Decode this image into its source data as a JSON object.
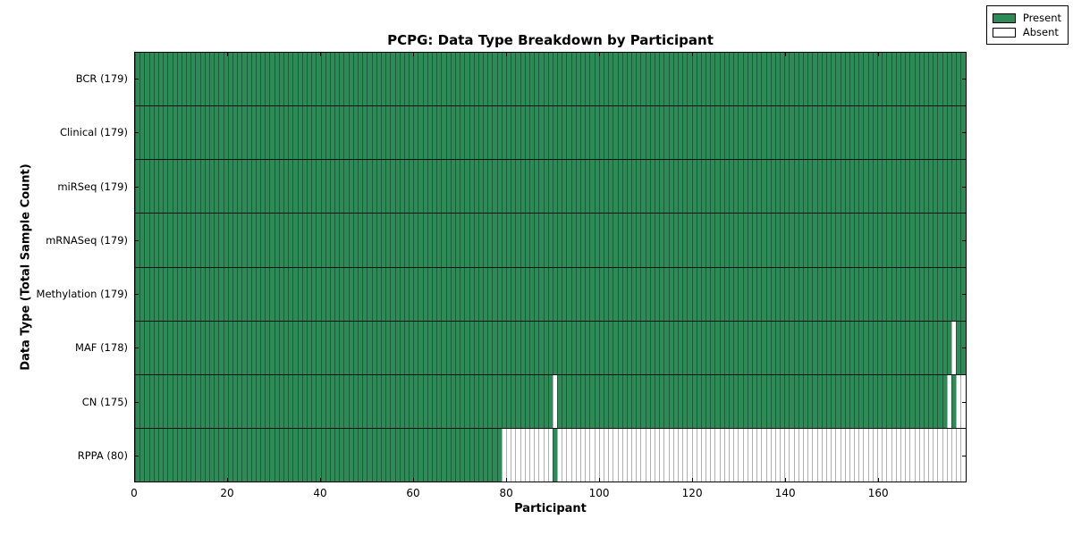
{
  "title": "PCPG: Data Type Breakdown by Participant",
  "xlabel": "Participant",
  "ylabel": "Data Type (Total Sample Count)",
  "colors": {
    "present_fill": "#2e8b57",
    "present_edge": "#1b5c3a",
    "absent_fill": "#ffffff",
    "absent_edge": "#b0b0b0",
    "spine": "#000000"
  },
  "chart_data": {
    "type": "heatmap",
    "title": "PCPG: Data Type Breakdown by Participant",
    "xlabel": "Participant",
    "ylabel": "Data Type (Total Sample Count)",
    "x_axis": {
      "min": 0,
      "max": 179,
      "ticks": [
        0,
        20,
        40,
        60,
        80,
        100,
        120,
        140,
        160
      ]
    },
    "total_participants": 179,
    "legend_position": "upper right",
    "legend": [
      {
        "label": "Present",
        "color": "#2e8b57"
      },
      {
        "label": "Absent",
        "color": "#ffffff"
      }
    ],
    "rows": [
      {
        "data_type": "BCR",
        "count": 179,
        "label": "BCR (179)",
        "present_runs": [
          [
            0,
            179
          ]
        ]
      },
      {
        "data_type": "Clinical",
        "count": 179,
        "label": "Clinical (179)",
        "present_runs": [
          [
            0,
            179
          ]
        ]
      },
      {
        "data_type": "miRSeq",
        "count": 179,
        "label": "miRSeq (179)",
        "present_runs": [
          [
            0,
            179
          ]
        ]
      },
      {
        "data_type": "mRNASeq",
        "count": 179,
        "label": "mRNASeq (179)",
        "present_runs": [
          [
            0,
            179
          ]
        ]
      },
      {
        "data_type": "Methylation",
        "count": 179,
        "label": "Methylation (179)",
        "present_runs": [
          [
            0,
            179
          ]
        ]
      },
      {
        "data_type": "MAF",
        "count": 178,
        "label": "MAF (178)",
        "present_runs": [
          [
            0,
            176
          ],
          [
            177,
            179
          ]
        ]
      },
      {
        "data_type": "CN",
        "count": 175,
        "label": "CN (175)",
        "present_runs": [
          [
            0,
            90
          ],
          [
            91,
            175
          ],
          [
            176,
            177
          ]
        ]
      },
      {
        "data_type": "RPPA",
        "count": 80,
        "label": "RPPA (80)",
        "present_runs": [
          [
            0,
            79
          ],
          [
            90,
            91
          ]
        ]
      }
    ]
  }
}
